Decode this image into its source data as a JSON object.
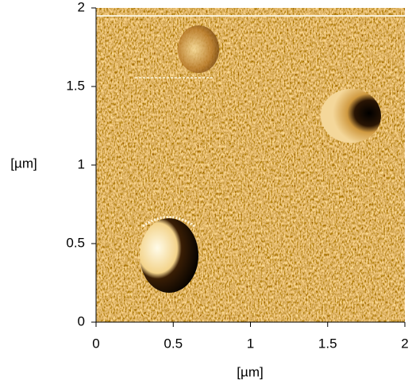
{
  "chart_data": {
    "type": "image",
    "xlabel": "[µm]",
    "ylabel": "[µm]",
    "xlim": [
      0,
      2
    ],
    "ylim": [
      0,
      2
    ],
    "xticks": [
      0,
      0.5,
      1,
      1.5,
      2
    ],
    "yticks": [
      0,
      0.5,
      1,
      1.5,
      2
    ]
  }
}
